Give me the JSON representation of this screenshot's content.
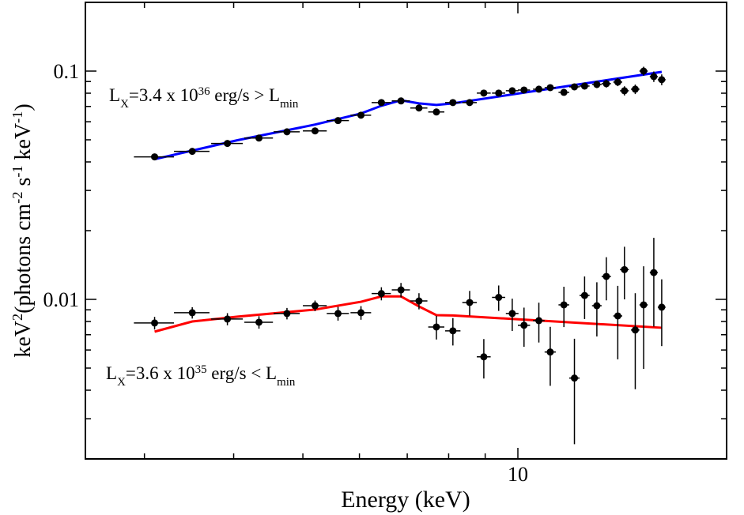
{
  "chart_data": {
    "type": "scatter",
    "xlabel": "Energy (keV)",
    "ylabel": [
      {
        "text": "keV"
      },
      {
        "text": "2",
        "style": "sup"
      },
      {
        "text": "(photons cm"
      },
      {
        "text": "-2",
        "style": "sup"
      },
      {
        "text": " s"
      },
      {
        "text": "-1",
        "style": "sup"
      },
      {
        "text": " keV"
      },
      {
        "text": "-1",
        "style": "sup"
      },
      {
        "text": ")"
      }
    ],
    "xscale": "log",
    "yscale": "log",
    "xlim": [
      2.48,
      19.6
    ],
    "ylim": [
      0.002,
      0.2
    ],
    "xticks": [
      10
    ],
    "xminorticks": [
      3,
      4,
      5,
      6,
      7,
      8,
      9
    ],
    "yticks": [
      0.01,
      0.1
    ],
    "yminorticks": [
      0.003,
      0.004,
      0.005,
      0.006,
      0.007,
      0.008,
      0.009,
      0.02,
      0.03,
      0.04,
      0.05,
      0.06,
      0.07,
      0.08,
      0.09
    ],
    "annotations": [
      [
        {
          "text": "L"
        },
        {
          "text": "X",
          "style": "sub"
        },
        {
          "text": "=3.4 x 10"
        },
        {
          "text": "36",
          "style": "sup"
        },
        {
          "text": " erg/s > L"
        },
        {
          "text": "min",
          "style": "sub"
        }
      ],
      [
        {
          "text": "L"
        },
        {
          "text": "X",
          "style": "sub"
        },
        {
          "text": "=3.6 x 10"
        },
        {
          "text": "35",
          "style": "sup"
        },
        {
          "text": " erg/s < L"
        },
        {
          "text": "min",
          "style": "sub"
        }
      ]
    ],
    "series": [
      {
        "color": "#000000",
        "x": [
          3.1,
          3.5,
          3.92,
          4.34,
          4.75,
          5.2,
          5.6,
          6.03,
          6.44,
          6.86,
          7.27,
          7.69,
          8.11,
          8.56,
          8.96,
          9.4,
          9.82,
          10.2,
          10.7,
          11.1,
          11.6,
          12.0,
          12.4,
          12.9,
          13.3,
          13.8,
          14.1,
          14.6,
          15.0,
          15.5,
          15.9
        ],
        "xerrors": [
          0.2,
          0.2,
          0.2,
          0.2,
          0.2,
          0.2,
          0.2,
          0.2,
          0.2,
          0.2,
          0.2,
          0.2,
          0.2,
          0.2,
          0.2,
          0.2,
          0.2,
          0.2,
          0.2,
          0.2,
          0.2,
          0.2,
          0.2,
          0.2,
          0.2,
          0.2,
          0.2,
          0.2,
          0.2,
          0.2,
          0.2
        ],
        "values": [
          0.0421,
          0.0445,
          0.0482,
          0.0509,
          0.0542,
          0.0547,
          0.0607,
          0.0641,
          0.0728,
          0.074,
          0.0689,
          0.0662,
          0.0728,
          0.0728,
          0.0801,
          0.0801,
          0.082,
          0.0826,
          0.0833,
          0.0846,
          0.0807,
          0.0853,
          0.086,
          0.0874,
          0.0881,
          0.0895,
          0.082,
          0.0833,
          0.1,
          0.0946,
          0.0917
        ],
        "errors": [
          0.001,
          0.001,
          0.001,
          0.001,
          0.001,
          0.001,
          0.0012,
          0.0012,
          0.0013,
          0.0014,
          0.0014,
          0.0015,
          0.0016,
          0.0017,
          0.0018,
          0.0019,
          0.002,
          0.0021,
          0.0022,
          0.0024,
          0.0026,
          0.0028,
          0.003,
          0.0032,
          0.0034,
          0.0036,
          0.0038,
          0.004,
          0.0045,
          0.005,
          0.005
        ]
      },
      {
        "color": "#000000",
        "x": [
          3.1,
          3.5,
          3.92,
          4.34,
          4.75,
          5.2,
          5.6,
          6.03,
          6.44,
          6.86,
          7.27,
          7.69,
          8.11,
          8.56,
          8.96,
          9.4,
          9.82,
          10.2,
          10.7,
          11.1,
          11.6,
          12.0,
          12.4,
          12.9,
          13.3,
          13.8,
          14.1,
          14.6,
          15.0,
          15.5,
          15.9
        ],
        "xerrors": [
          0.2,
          0.2,
          0.2,
          0.2,
          0.2,
          0.2,
          0.2,
          0.2,
          0.2,
          0.2,
          0.2,
          0.2,
          0.2,
          0.2,
          0.2,
          0.2,
          0.2,
          0.2,
          0.2,
          0.2,
          0.2,
          0.2,
          0.2,
          0.2,
          0.2,
          0.2,
          0.2,
          0.2,
          0.2,
          0.2,
          0.2
        ],
        "values": [
          0.00788,
          0.00874,
          0.0082,
          0.00794,
          0.00867,
          0.00938,
          0.00867,
          0.00874,
          0.0106,
          0.011,
          0.00984,
          0.00757,
          0.00728,
          0.00969,
          0.0056,
          0.0102,
          0.00867,
          0.0077,
          0.00807,
          0.00588,
          0.00946,
          0.00452,
          0.0104,
          0.00938,
          0.0126,
          0.00846,
          0.0135,
          0.00734,
          0.00946,
          0.0131,
          0.00924
        ],
        "errors": [
          0.0005,
          0.0005,
          0.0005,
          0.0005,
          0.0005,
          0.0005,
          0.0006,
          0.0006,
          0.0007,
          0.0008,
          0.0008,
          0.0009,
          0.001,
          0.0012,
          0.0011,
          0.0013,
          0.0014,
          0.0015,
          0.0016,
          0.0017,
          0.0019,
          0.0022,
          0.0022,
          0.0025,
          0.0027,
          0.003,
          0.0035,
          0.0033,
          0.0045,
          0.0055,
          0.003
        ]
      }
    ],
    "models": [
      {
        "color": "#0000ff",
        "x": [
          3.1,
          4.05,
          5.2,
          6.03,
          6.44,
          6.86,
          7.27,
          7.69,
          8.11,
          15.9
        ],
        "values": [
          0.0411,
          0.0498,
          0.0583,
          0.0652,
          0.0705,
          0.0745,
          0.0722,
          0.0711,
          0.0722,
          0.0992
        ]
      },
      {
        "color": "#ff0000",
        "x": [
          3.1,
          3.5,
          4.05,
          5.2,
          6.03,
          6.44,
          6.86,
          7.27,
          7.69,
          8.11,
          15.9
        ],
        "values": [
          0.00722,
          0.008,
          0.0084,
          0.00902,
          0.00976,
          0.0103,
          0.0103,
          0.00931,
          0.00853,
          0.0085,
          0.00751
        ]
      }
    ]
  }
}
